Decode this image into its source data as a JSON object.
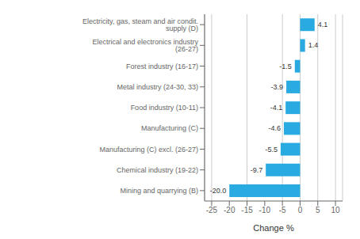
{
  "chart_data": {
    "type": "bar",
    "orientation": "horizontal",
    "categories": [
      "Mining and quarrying (B)",
      "Chemical industry (19-22)",
      "Manufacturing (C) excl. (26-27)",
      "Manufacturing (C)",
      "Food industry (10-11)",
      "Metal industry (24-30, 33)",
      "Forest industry (16-17)",
      "Electrical and electronics industry (26-27)",
      "Electricity, gas, steam and air condit. supply (D)"
    ],
    "values": [
      -20.0,
      -9.7,
      -5.5,
      -4.6,
      -4.1,
      -3.9,
      -1.5,
      1.4,
      4.1
    ],
    "value_labels": [
      "-20.0",
      "-9.7",
      "-5.5",
      "-4.6",
      "-4.1",
      "-3.9",
      "-1.5",
      "1.4",
      "4.1"
    ],
    "data_labels": true,
    "color": "#29ABE2",
    "xlim": [
      -27,
      12
    ],
    "xticks": [
      -25,
      -20,
      -15,
      -10,
      -5,
      0,
      5,
      10
    ],
    "xlabel": "Change %",
    "grid": true
  }
}
